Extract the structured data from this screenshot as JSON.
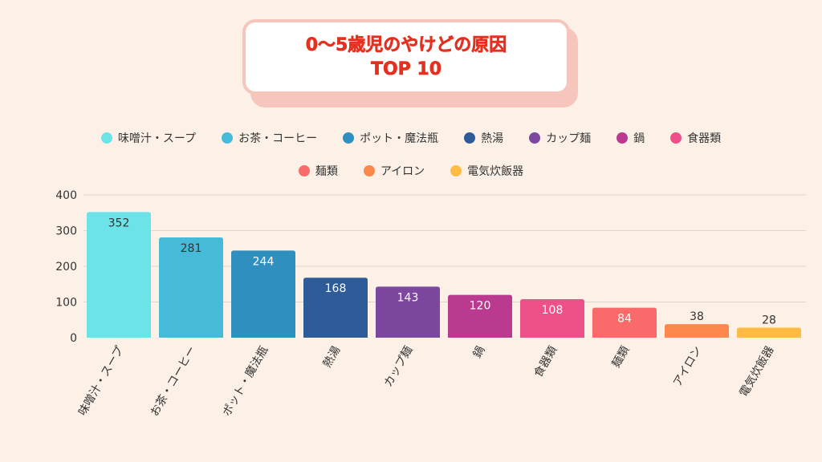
{
  "title": {
    "line1": "0〜5歳児のやけどの原因",
    "line2": "TOP 10"
  },
  "chart_data": {
    "type": "bar",
    "categories": [
      "味噌汁・スープ",
      "お茶・コーヒー",
      "ポット・魔法瓶",
      "熱湯",
      "カップ麺",
      "鍋",
      "食器類",
      "麺類",
      "アイロン",
      "電気炊飯器"
    ],
    "values": [
      352,
      281,
      244,
      168,
      143,
      120,
      108,
      84,
      38,
      28
    ],
    "colors": [
      "#6ce3e8",
      "#45bbd9",
      "#2f8fbf",
      "#2e5c99",
      "#7c479e",
      "#b93a8f",
      "#ee5089",
      "#f96b6b",
      "#fd884d",
      "#ffbb43"
    ],
    "label_colors": [
      "#333333",
      "#333333",
      "#ffffff",
      "#ffffff",
      "#ffffff",
      "#ffffff",
      "#ffffff",
      "#ffffff",
      "#333333",
      "#333333"
    ],
    "yticks": [
      0,
      100,
      200,
      300,
      400
    ],
    "ylim": [
      0,
      400
    ],
    "grid": true,
    "legend_position": "top"
  }
}
